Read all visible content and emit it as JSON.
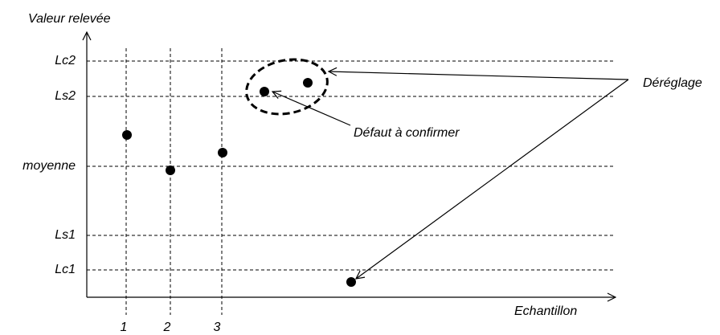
{
  "diagram": {
    "y_axis_label": "Valeur relevée",
    "x_axis_label": "Echantillon",
    "levels": [
      "Lc2",
      "Ls2",
      "moyenne",
      "Ls1",
      "Lc1"
    ],
    "samples": [
      "1",
      "2",
      "3"
    ],
    "annotations": [
      "Défaut à confirmer",
      "Déréglage"
    ]
  }
}
